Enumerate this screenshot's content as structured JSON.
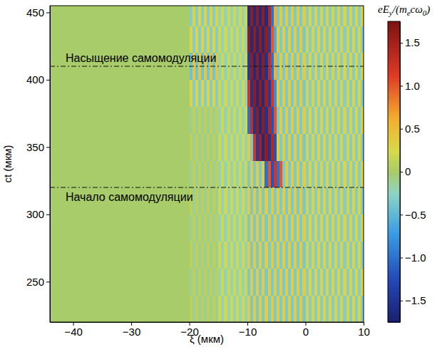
{
  "chart_data": {
    "type": "heatmap",
    "xlabel": "ξ (мкм)",
    "ylabel": "ct (мкм)",
    "xlim": [
      -44,
      10
    ],
    "ylim": [
      220,
      455
    ],
    "xticks": [
      {
        "value": -40,
        "label": "−40"
      },
      {
        "value": -30,
        "label": "−30"
      },
      {
        "value": -20,
        "label": "−20"
      },
      {
        "value": -10,
        "label": "−10"
      },
      0,
      10
    ],
    "yticks": [
      250,
      300,
      350,
      400,
      450
    ],
    "annotations": [
      {
        "text": "Насыщение самомодуляции",
        "y": 410
      },
      {
        "text": "Начало самомодуляции",
        "y": 320
      }
    ],
    "colorbar": {
      "label": [
        "eE",
        "y",
        "/(m",
        "e",
        "cω",
        "0",
        ")"
      ],
      "range": [
        -1.75,
        1.75
      ],
      "ticks": [
        {
          "value": -1.5,
          "label": "−1.5"
        },
        {
          "value": -1,
          "label": "−1.0"
        },
        {
          "value": -0.5,
          "label": "−0.5"
        },
        0,
        0.5,
        {
          "value": 1,
          "label": "1.0"
        },
        1.5
      ]
    },
    "x_edges": [
      -44,
      -20,
      -19.5,
      -19,
      -18.5,
      -18,
      -17.5,
      -17,
      -16.5,
      -16,
      -15.5,
      -15,
      -14.5,
      -14,
      -13.5,
      -13,
      -12.5,
      -12,
      -11.5,
      -11,
      -10.5,
      -10,
      -9.5,
      -9,
      -8.5,
      -8,
      -7.5,
      -7,
      -6.5,
      -6,
      -5.5,
      -5,
      -4.5,
      -4,
      -3.5,
      -3,
      -2.5,
      -2,
      -1.5,
      -1,
      -0.5,
      0,
      0.5,
      1,
      1.5,
      2,
      2.5,
      3,
      3.5,
      4,
      4.5,
      5,
      5.5,
      6,
      6.5,
      7,
      7.5,
      8,
      8.5,
      9,
      9.5,
      10
    ],
    "y_edges": [
      220,
      240,
      260,
      280,
      300,
      320,
      340,
      360,
      380,
      400,
      420,
      440,
      460
    ],
    "z": [
      [
        0,
        0.1,
        -0.1,
        0.1,
        -0.1,
        0.1,
        -0.1,
        0.1,
        -0.1,
        0.1,
        -0.1,
        0.2,
        -0.2,
        0.2,
        -0.2,
        0.2,
        -0.2,
        0.2,
        -0.2,
        0.2,
        -0.2,
        0.35,
        -0.35,
        0.35,
        -0.35,
        0.35,
        -0.35,
        0.35,
        -0.35,
        0.35,
        -0.35,
        0.35,
        -0.35,
        0.35,
        -0.35,
        0.35,
        -0.35,
        0.35,
        -0.35,
        0.35,
        -0.35,
        0.3,
        -0.3,
        0.3,
        -0.3,
        0.3,
        -0.3,
        0.3,
        -0.3,
        0.3,
        -0.3,
        0.3,
        -0.3,
        0.3,
        -0.3,
        0.3,
        -0.3,
        0.3,
        -0.3,
        0.3,
        -0.3
      ],
      [
        0,
        -0.1,
        0.1,
        -0.1,
        0.1,
        -0.1,
        0.1,
        -0.1,
        0.1,
        -0.1,
        0.1,
        -0.2,
        0.2,
        -0.2,
        0.2,
        -0.2,
        0.2,
        -0.2,
        0.2,
        -0.2,
        0.2,
        -0.35,
        0.35,
        -0.35,
        0.35,
        -0.35,
        0.35,
        -0.35,
        0.35,
        -0.35,
        0.35,
        -0.35,
        0.35,
        -0.35,
        0.35,
        -0.35,
        0.35,
        -0.35,
        0.35,
        -0.35,
        0.35,
        -0.3,
        0.3,
        -0.3,
        0.3,
        -0.3,
        0.3,
        -0.3,
        0.3,
        -0.3,
        0.3,
        -0.3,
        0.3,
        -0.3,
        0.3,
        -0.3,
        0.3,
        -0.3,
        0.3,
        -0.3,
        0.3
      ],
      [
        0,
        0.1,
        -0.1,
        0.1,
        -0.1,
        0.1,
        -0.1,
        0.1,
        -0.1,
        0.1,
        -0.1,
        0.2,
        -0.2,
        0.2,
        -0.2,
        0.2,
        -0.2,
        0.2,
        -0.2,
        0.2,
        -0.2,
        0.35,
        -0.35,
        0.35,
        -0.35,
        0.35,
        -0.35,
        0.35,
        -0.35,
        0.35,
        -0.35,
        0.35,
        -0.35,
        0.35,
        -0.35,
        0.35,
        -0.35,
        0.35,
        -0.35,
        0.35,
        -0.35,
        0.3,
        -0.3,
        0.3,
        -0.3,
        0.3,
        -0.3,
        0.3,
        -0.3,
        0.3,
        -0.3,
        0.3,
        -0.3,
        0.3,
        -0.3,
        0.3,
        -0.3,
        0.3,
        -0.3,
        0.3,
        -0.3
      ],
      [
        0,
        -0.1,
        0.1,
        -0.1,
        0.1,
        -0.1,
        0.1,
        -0.1,
        0.1,
        -0.1,
        0.1,
        -0.2,
        0.2,
        -0.2,
        0.2,
        -0.2,
        0.2,
        -0.2,
        0.2,
        -0.2,
        0.2,
        -0.35,
        0.35,
        -0.35,
        0.35,
        -0.35,
        0.35,
        -0.35,
        0.35,
        -0.35,
        0.35,
        -0.35,
        0.35,
        -0.35,
        0.35,
        -0.35,
        0.35,
        -0.35,
        0.35,
        -0.35,
        0.35,
        -0.3,
        0.3,
        -0.3,
        0.3,
        -0.3,
        0.3,
        -0.3,
        0.3,
        -0.3,
        0.3,
        -0.3,
        0.3,
        -0.3,
        0.3,
        -0.3,
        0.3,
        -0.3,
        0.3,
        -0.3,
        0.3
      ],
      [
        0,
        0.1,
        -0.1,
        0.1,
        -0.1,
        0.1,
        -0.1,
        0.1,
        -0.1,
        0.1,
        -0.1,
        0.2,
        -0.2,
        0.2,
        -0.2,
        0.2,
        -0.2,
        0.2,
        -0.2,
        0.2,
        -0.2,
        0.35,
        -0.35,
        0.35,
        -0.35,
        0.35,
        -0.35,
        0.35,
        -0.35,
        0.35,
        -0.35,
        0.35,
        -0.35,
        0.35,
        -0.35,
        0.35,
        -0.35,
        0.35,
        -0.35,
        0.35,
        -0.35,
        0.3,
        -0.3,
        0.3,
        -0.3,
        0.3,
        -0.3,
        0.3,
        -0.3,
        0.3,
        -0.3,
        0.3,
        -0.3,
        0.3,
        -0.3,
        0.3,
        -0.3,
        0.3,
        -0.3,
        0.3,
        -0.3
      ],
      [
        0,
        -0.1,
        0.1,
        -0.1,
        0.1,
        -0.1,
        0.1,
        -0.1,
        0.1,
        -0.1,
        0.1,
        -0.2,
        0.2,
        -0.2,
        0.2,
        -0.2,
        0.2,
        -0.2,
        0.2,
        -0.2,
        0.2,
        -0.35,
        0.35,
        -0.35,
        0.35,
        -0.35,
        0.35,
        -1.0,
        1.0,
        -1.2,
        1.2,
        -1.0,
        1.0,
        -0.35,
        0.35,
        -0.35,
        0.35,
        -0.35,
        0.35,
        -0.35,
        0.35,
        -0.3,
        0.3,
        -0.3,
        0.3,
        -0.3,
        0.3,
        -0.3,
        0.3,
        -0.3,
        0.3,
        -0.3,
        0.3,
        -0.3,
        0.3,
        -0.3,
        0.3,
        -0.3,
        0.3,
        -0.3,
        0.3
      ],
      [
        0,
        0.1,
        -0.1,
        0.1,
        -0.1,
        0.1,
        -0.1,
        0.1,
        -0.1,
        0.1,
        -0.1,
        0.2,
        -0.2,
        0.2,
        -0.2,
        0.2,
        -0.2,
        0.2,
        -0.2,
        0.2,
        -0.2,
        0.35,
        -0.35,
        1.2,
        -1.4,
        1.5,
        -1.6,
        1.6,
        -1.5,
        1.4,
        -1.2,
        0.35,
        -0.35,
        0.35,
        -0.35,
        0.35,
        -0.35,
        0.35,
        -0.35,
        0.35,
        -0.35,
        0.3,
        -0.3,
        0.3,
        -0.3,
        0.3,
        -0.3,
        0.3,
        -0.3,
        0.3,
        -0.3,
        0.3,
        -0.3,
        0.3,
        -0.3,
        0.3,
        -0.3,
        0.3,
        -0.3,
        0.3,
        -0.3
      ],
      [
        0,
        -0.1,
        0.1,
        -0.1,
        0.1,
        -0.1,
        0.1,
        -0.1,
        0.1,
        -0.1,
        0.1,
        -0.2,
        0.2,
        -0.2,
        0.2,
        -0.2,
        0.2,
        -0.2,
        0.2,
        -0.2,
        0.2,
        -1.0,
        1.3,
        -1.5,
        1.6,
        -1.6,
        1.6,
        -1.5,
        1.4,
        -1.2,
        1.0,
        -0.35,
        0.35,
        -0.35,
        0.35,
        -0.35,
        0.35,
        -0.35,
        0.35,
        -0.35,
        0.35,
        -0.3,
        0.3,
        -0.3,
        0.3,
        -0.3,
        0.3,
        -0.3,
        0.3,
        -0.3,
        0.3,
        -0.3,
        0.3,
        -0.3,
        0.3,
        -0.3,
        0.3,
        -0.3,
        0.3,
        -0.3,
        0.3
      ],
      [
        0,
        0.3,
        -0.3,
        0.3,
        -0.3,
        0.3,
        -0.3,
        0.3,
        -0.3,
        0.3,
        -0.3,
        0.2,
        -0.2,
        0.2,
        -0.2,
        0.2,
        -0.2,
        0.2,
        -0.2,
        0.2,
        -0.2,
        1.2,
        -1.5,
        1.6,
        -1.6,
        1.6,
        -1.6,
        1.5,
        -1.4,
        1.2,
        -0.8,
        0.35,
        -0.35,
        0.35,
        -0.35,
        0.35,
        -0.35,
        0.35,
        -0.35,
        0.35,
        -0.35,
        0.3,
        -0.3,
        0.3,
        -0.3,
        0.3,
        -0.3,
        0.3,
        -0.3,
        0.3,
        -0.3,
        0.3,
        -0.3,
        0.3,
        -0.3,
        0.3,
        -0.3,
        0.3,
        -0.3,
        0.3,
        -0.3
      ],
      [
        0,
        -0.4,
        0.4,
        -0.4,
        0.4,
        -0.4,
        0.4,
        -0.4,
        0.4,
        -0.4,
        0.4,
        -0.2,
        0.2,
        -0.2,
        0.2,
        -0.2,
        0.2,
        -0.2,
        0.2,
        -0.2,
        0.2,
        -1.4,
        1.6,
        -1.6,
        1.6,
        -1.6,
        1.6,
        -1.5,
        1.3,
        -1.0,
        0.6,
        -0.35,
        0.35,
        -0.35,
        0.35,
        -0.35,
        0.35,
        -0.35,
        0.35,
        -0.35,
        0.35,
        -0.3,
        0.3,
        -0.3,
        0.3,
        -0.3,
        0.3,
        -0.3,
        0.3,
        -0.3,
        0.3,
        -0.3,
        0.3,
        -0.3,
        0.3,
        -0.3,
        0.3,
        -0.3,
        0.3,
        -0.3,
        0.3
      ],
      [
        0,
        0.3,
        -0.3,
        0.3,
        -0.3,
        0.3,
        -0.3,
        0.3,
        -0.3,
        0.3,
        -0.3,
        0.2,
        -0.2,
        0.2,
        -0.2,
        0.2,
        -0.2,
        0.2,
        -0.2,
        0.2,
        -0.2,
        1.6,
        -1.6,
        1.6,
        -1.6,
        1.6,
        -1.6,
        1.6,
        -1.4,
        1.0,
        -0.6,
        0.35,
        -0.35,
        0.35,
        -0.35,
        0.35,
        -0.35,
        0.35,
        -0.35,
        0.35,
        -0.35,
        0.3,
        -0.3,
        0.3,
        -0.3,
        0.3,
        -0.3,
        0.3,
        -0.3,
        0.3,
        -0.3,
        0.3,
        -0.3,
        0.3,
        -0.3,
        0.3,
        -0.3,
        0.3,
        -0.3,
        0.3,
        -0.3
      ],
      [
        0,
        -0.3,
        0.3,
        -0.3,
        0.3,
        -0.3,
        0.3,
        -0.3,
        0.3,
        -0.3,
        0.3,
        -0.2,
        0.2,
        -0.2,
        0.2,
        -0.2,
        0.2,
        -0.2,
        0.2,
        -0.2,
        0.2,
        -1.6,
        1.6,
        -1.6,
        1.6,
        -1.6,
        1.6,
        -1.6,
        1.4,
        -1.0,
        0.6,
        -0.35,
        0.35,
        -0.35,
        0.35,
        -0.35,
        0.35,
        -0.35,
        0.35,
        -0.35,
        0.35,
        -0.3,
        0.3,
        -0.3,
        0.3,
        -0.3,
        0.3,
        -0.3,
        0.3,
        -0.3,
        0.3,
        -0.3,
        0.3,
        -0.3,
        0.3,
        -0.3,
        0.3,
        -0.3,
        0.3,
        -0.3,
        0.3
      ]
    ]
  }
}
